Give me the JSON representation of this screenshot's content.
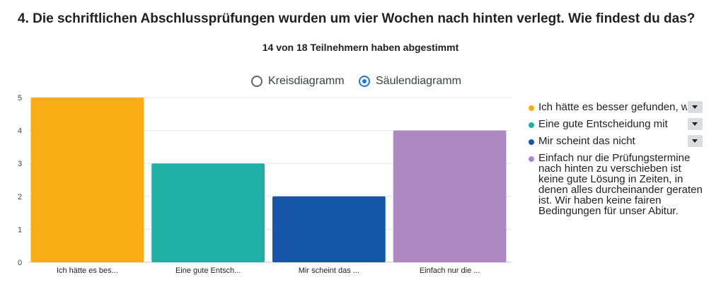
{
  "question": "4. Die schriftlichen Abschlussprüfungen wurden um vier Wochen nach hinten verlegt. Wie findest du das?",
  "summary": "14 von 18 Teilnehmern haben abgestimmt",
  "chart_toggle": {
    "pie_label": "Kreisdiagramm",
    "bar_label": "Säulendiagramm",
    "selected": "bar"
  },
  "chart_data": {
    "type": "bar",
    "title": "14 von 18 Teilnehmern haben abgestimmt",
    "categories": [
      "Ich hätte es bes...",
      "Eine gute Entsch...",
      "Mir scheint das ...",
      "Einfach nur die ..."
    ],
    "values": [
      5,
      3,
      2,
      4
    ],
    "colors": [
      "#f9ad14",
      "#1eafa5",
      "#1656a8",
      "#ad89c1"
    ],
    "ylim": [
      0,
      5
    ],
    "yticks": [
      0,
      1,
      2,
      3,
      4,
      5
    ],
    "xlabel": "",
    "ylabel": "",
    "grid": true,
    "legend_position": "right",
    "legend": [
      {
        "label": "Ich hätte es besser gefunden, wenn",
        "color": "#f9ad14",
        "truncated": true
      },
      {
        "label": "Eine gute Entscheidung mit",
        "color": "#1eafa5",
        "truncated": true
      },
      {
        "label": "Mir scheint das nicht",
        "color": "#1656a8",
        "truncated": true
      },
      {
        "label": "Einfach nur die Prüfungstermine nach hinten zu verschieben ist keine gute Lösung in Zeiten, in denen alles durcheinander geraten ist. Wir haben keine fairen Bedingungen für unser Abitur.",
        "color": "#ad89c1",
        "truncated": false
      }
    ]
  }
}
